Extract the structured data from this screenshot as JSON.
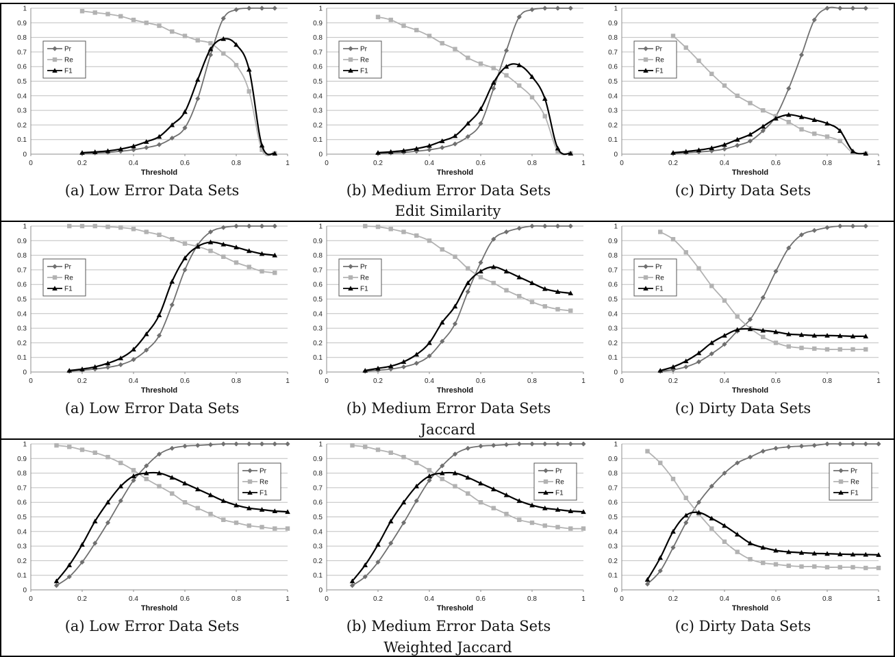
{
  "colors": {
    "pr": "#707070",
    "re": "#b2b2b2",
    "f1": "#000000",
    "grid": "#bfbfbf",
    "axis": "#8c8c8c"
  },
  "row_captions": [
    "Edit Similarity",
    "Jaccard",
    "Weighted Jaccard"
  ],
  "chart_data": [
    {
      "type": "line",
      "caption": "(a) Low Error Data Sets",
      "xlabel": "Threshold",
      "ylabel": "",
      "xlim": [
        0,
        1
      ],
      "ylim": [
        0,
        1
      ],
      "xticks": [
        "0",
        "0.2",
        "0.4",
        "0.6",
        "0.8",
        "1"
      ],
      "yticks": [
        "0",
        "0.1",
        "0.2",
        "0.3",
        "0.4",
        "0.5",
        "0.6",
        "0.7",
        "0.8",
        "0.9",
        "1"
      ],
      "grid": "horizontal",
      "legend": "left",
      "x": [
        0.2,
        0.25,
        0.3,
        0.35,
        0.4,
        0.45,
        0.5,
        0.55,
        0.6,
        0.65,
        0.7,
        0.75,
        0.8,
        0.85,
        0.9,
        0.95
      ],
      "series": [
        {
          "name": "Pr",
          "values": [
            0.005,
            0.008,
            0.012,
            0.02,
            0.03,
            0.045,
            0.065,
            0.11,
            0.18,
            0.38,
            0.68,
            0.93,
            0.99,
            1.0,
            1.0,
            1.0
          ]
        },
        {
          "name": "Re",
          "values": [
            0.98,
            0.97,
            0.96,
            0.945,
            0.92,
            0.9,
            0.88,
            0.84,
            0.81,
            0.78,
            0.76,
            0.69,
            0.61,
            0.43,
            0.03,
            0.005
          ]
        },
        {
          "name": "F1",
          "values": [
            0.01,
            0.015,
            0.022,
            0.035,
            0.055,
            0.085,
            0.12,
            0.2,
            0.29,
            0.51,
            0.72,
            0.79,
            0.75,
            0.58,
            0.06,
            0.005
          ]
        }
      ]
    },
    {
      "type": "line",
      "caption": "(b) Medium Error Data Sets",
      "xlabel": "Threshold",
      "ylabel": "",
      "xlim": [
        0,
        1
      ],
      "ylim": [
        0,
        1
      ],
      "xticks": [
        "0",
        "0.2",
        "0.4",
        "0.6",
        "0.8",
        "1"
      ],
      "yticks": [
        "0",
        "0.1",
        "0.2",
        "0.3",
        "0.4",
        "0.5",
        "0.6",
        "0.7",
        "0.8",
        "0.9",
        "1"
      ],
      "grid": "horizontal",
      "legend": "left",
      "x": [
        0.2,
        0.25,
        0.3,
        0.35,
        0.4,
        0.45,
        0.5,
        0.55,
        0.6,
        0.65,
        0.7,
        0.75,
        0.8,
        0.85,
        0.9,
        0.95
      ],
      "series": [
        {
          "name": "Pr",
          "values": [
            0.005,
            0.008,
            0.012,
            0.02,
            0.03,
            0.045,
            0.07,
            0.12,
            0.21,
            0.45,
            0.71,
            0.94,
            0.99,
            1.0,
            1.0,
            1.0
          ]
        },
        {
          "name": "Re",
          "values": [
            0.94,
            0.92,
            0.88,
            0.85,
            0.81,
            0.76,
            0.72,
            0.66,
            0.62,
            0.59,
            0.54,
            0.47,
            0.39,
            0.26,
            0.02,
            0.005
          ]
        },
        {
          "name": "F1",
          "values": [
            0.01,
            0.016,
            0.024,
            0.038,
            0.058,
            0.09,
            0.125,
            0.21,
            0.31,
            0.49,
            0.6,
            0.61,
            0.53,
            0.38,
            0.04,
            0.005
          ]
        }
      ]
    },
    {
      "type": "line",
      "caption": "(c) Dirty Data Sets",
      "xlabel": "Threshold",
      "ylabel": "",
      "xlim": [
        0,
        1
      ],
      "ylim": [
        0,
        1
      ],
      "xticks": [
        "0",
        "0.2",
        "0.4",
        "0.6",
        "0.8",
        "1"
      ],
      "yticks": [
        "0",
        "0.1",
        "0.2",
        "0.3",
        "0.4",
        "0.5",
        "0.6",
        "0.7",
        "0.8",
        "0.9",
        "1"
      ],
      "grid": "horizontal",
      "legend": "left",
      "x": [
        0.2,
        0.25,
        0.3,
        0.35,
        0.4,
        0.45,
        0.5,
        0.55,
        0.6,
        0.65,
        0.7,
        0.75,
        0.8,
        0.85,
        0.9,
        0.95
      ],
      "series": [
        {
          "name": "Pr",
          "values": [
            0.005,
            0.01,
            0.015,
            0.022,
            0.035,
            0.06,
            0.09,
            0.16,
            0.26,
            0.45,
            0.68,
            0.92,
            1.0,
            1.0,
            1.0,
            1.0
          ]
        },
        {
          "name": "Re",
          "values": [
            0.81,
            0.73,
            0.64,
            0.55,
            0.47,
            0.4,
            0.35,
            0.3,
            0.26,
            0.22,
            0.17,
            0.14,
            0.12,
            0.09,
            0.01,
            0.003
          ]
        },
        {
          "name": "F1",
          "values": [
            0.01,
            0.018,
            0.028,
            0.042,
            0.065,
            0.1,
            0.135,
            0.19,
            0.245,
            0.27,
            0.255,
            0.235,
            0.21,
            0.16,
            0.02,
            0.005
          ]
        }
      ]
    },
    {
      "type": "line",
      "caption": "(a) Low Error Data Sets",
      "xlabel": "Threshold",
      "ylabel": "",
      "xlim": [
        0,
        1
      ],
      "ylim": [
        0,
        1
      ],
      "xticks": [
        "0",
        "0.2",
        "0.4",
        "0.6",
        "0.8",
        "1"
      ],
      "yticks": [
        "0",
        "0.1",
        "0.2",
        "0.3",
        "0.4",
        "0.5",
        "0.6",
        "0.7",
        "0.8",
        "0.9",
        "1"
      ],
      "grid": "horizontal",
      "legend": "left",
      "x": [
        0.15,
        0.2,
        0.25,
        0.3,
        0.35,
        0.4,
        0.45,
        0.5,
        0.55,
        0.6,
        0.65,
        0.7,
        0.75,
        0.8,
        0.85,
        0.9,
        0.95
      ],
      "series": [
        {
          "name": "Pr",
          "values": [
            0.005,
            0.012,
            0.02,
            0.032,
            0.05,
            0.085,
            0.15,
            0.25,
            0.46,
            0.7,
            0.87,
            0.96,
            0.99,
            1.0,
            1.0,
            1.0,
            1.0
          ]
        },
        {
          "name": "Re",
          "values": [
            1.0,
            1.0,
            1.0,
            0.995,
            0.99,
            0.98,
            0.96,
            0.94,
            0.91,
            0.88,
            0.86,
            0.83,
            0.79,
            0.75,
            0.72,
            0.69,
            0.68
          ]
        },
        {
          "name": "F1",
          "values": [
            0.01,
            0.02,
            0.035,
            0.06,
            0.095,
            0.155,
            0.26,
            0.39,
            0.62,
            0.78,
            0.86,
            0.89,
            0.875,
            0.855,
            0.83,
            0.81,
            0.8
          ]
        }
      ]
    },
    {
      "type": "line",
      "caption": "(b) Medium Error Data Sets",
      "xlabel": "Threshold",
      "ylabel": "",
      "xlim": [
        0,
        1
      ],
      "ylim": [
        0,
        1
      ],
      "xticks": [
        "0",
        "0.2",
        "0.4",
        "0.6",
        "0.8",
        "1"
      ],
      "yticks": [
        "0",
        "0.1",
        "0.2",
        "0.3",
        "0.4",
        "0.5",
        "0.6",
        "0.7",
        "0.8",
        "0.9",
        "1"
      ],
      "grid": "horizontal",
      "legend": "left",
      "x": [
        0.15,
        0.2,
        0.25,
        0.3,
        0.35,
        0.4,
        0.45,
        0.5,
        0.55,
        0.6,
        0.65,
        0.7,
        0.75,
        0.8,
        0.85,
        0.9,
        0.95
      ],
      "series": [
        {
          "name": "Pr",
          "values": [
            0.005,
            0.012,
            0.02,
            0.035,
            0.06,
            0.11,
            0.21,
            0.33,
            0.55,
            0.75,
            0.91,
            0.96,
            0.985,
            1.0,
            1.0,
            1.0,
            1.0
          ]
        },
        {
          "name": "Re",
          "values": [
            1.0,
            0.995,
            0.98,
            0.96,
            0.935,
            0.9,
            0.84,
            0.79,
            0.71,
            0.65,
            0.61,
            0.56,
            0.52,
            0.48,
            0.45,
            0.43,
            0.42
          ]
        },
        {
          "name": "F1",
          "values": [
            0.01,
            0.025,
            0.04,
            0.07,
            0.12,
            0.2,
            0.34,
            0.45,
            0.61,
            0.69,
            0.72,
            0.69,
            0.65,
            0.61,
            0.57,
            0.55,
            0.54
          ]
        }
      ]
    },
    {
      "type": "line",
      "caption": "(c) Dirty Data Sets",
      "xlabel": "Threshold",
      "ylabel": "",
      "xlim": [
        0,
        1
      ],
      "ylim": [
        0,
        1
      ],
      "xticks": [
        "0",
        "0.2",
        "0.4",
        "0.6",
        "0.8",
        "1"
      ],
      "yticks": [
        "0",
        "0.1",
        "0.2",
        "0.3",
        "0.4",
        "0.5",
        "0.6",
        "0.7",
        "0.8",
        "0.9",
        "1"
      ],
      "grid": "horizontal",
      "legend": "left",
      "x": [
        0.15,
        0.2,
        0.25,
        0.3,
        0.35,
        0.4,
        0.45,
        0.5,
        0.55,
        0.6,
        0.65,
        0.7,
        0.75,
        0.8,
        0.85,
        0.9,
        0.95
      ],
      "series": [
        {
          "name": "Pr",
          "values": [
            0.005,
            0.015,
            0.035,
            0.07,
            0.125,
            0.19,
            0.28,
            0.36,
            0.51,
            0.69,
            0.85,
            0.94,
            0.97,
            0.99,
            1.0,
            1.0,
            1.0
          ]
        },
        {
          "name": "Re",
          "values": [
            0.96,
            0.91,
            0.82,
            0.71,
            0.59,
            0.49,
            0.38,
            0.3,
            0.24,
            0.2,
            0.175,
            0.165,
            0.16,
            0.155,
            0.155,
            0.155,
            0.155
          ]
        },
        {
          "name": "F1",
          "values": [
            0.01,
            0.035,
            0.075,
            0.13,
            0.2,
            0.25,
            0.29,
            0.295,
            0.285,
            0.275,
            0.26,
            0.255,
            0.25,
            0.25,
            0.248,
            0.245,
            0.245
          ]
        }
      ]
    },
    {
      "type": "line",
      "caption": "(a) Low Error Data Sets",
      "xlabel": "Threshold",
      "ylabel": "",
      "xlim": [
        0,
        1
      ],
      "ylim": [
        0,
        1
      ],
      "xticks": [
        "0",
        "0.2",
        "0.4",
        "0.6",
        "0.8",
        "1"
      ],
      "yticks": [
        "0",
        "0.1",
        "0.2",
        "0.3",
        "0.4",
        "0.5",
        "0.6",
        "0.7",
        "0.8",
        "0.9",
        "1"
      ],
      "grid": "horizontal",
      "legend": "right",
      "x": [
        0.1,
        0.15,
        0.2,
        0.25,
        0.3,
        0.35,
        0.4,
        0.45,
        0.5,
        0.55,
        0.6,
        0.65,
        0.7,
        0.75,
        0.8,
        0.85,
        0.9,
        0.95,
        1.0
      ],
      "series": [
        {
          "name": "Pr",
          "values": [
            0.03,
            0.09,
            0.19,
            0.32,
            0.46,
            0.61,
            0.75,
            0.85,
            0.93,
            0.97,
            0.985,
            0.99,
            0.995,
            1.0,
            1.0,
            1.0,
            1.0,
            1.0,
            1.0
          ]
        },
        {
          "name": "Re",
          "values": [
            0.99,
            0.98,
            0.96,
            0.94,
            0.91,
            0.87,
            0.82,
            0.76,
            0.71,
            0.66,
            0.6,
            0.56,
            0.52,
            0.48,
            0.46,
            0.44,
            0.43,
            0.42,
            0.42
          ]
        },
        {
          "name": "F1",
          "values": [
            0.06,
            0.17,
            0.31,
            0.47,
            0.6,
            0.71,
            0.78,
            0.8,
            0.8,
            0.77,
            0.73,
            0.69,
            0.65,
            0.61,
            0.58,
            0.56,
            0.55,
            0.54,
            0.535
          ]
        }
      ]
    },
    {
      "type": "line",
      "caption": "(b) Medium Error Data Sets",
      "xlabel": "Threshold",
      "ylabel": "",
      "xlim": [
        0,
        1
      ],
      "ylim": [
        0,
        1
      ],
      "xticks": [
        "0",
        "0.2",
        "0.4",
        "0.6",
        "0.8",
        "1"
      ],
      "yticks": [
        "0",
        "0.1",
        "0.2",
        "0.3",
        "0.4",
        "0.5",
        "0.6",
        "0.7",
        "0.8",
        "0.9",
        "1"
      ],
      "grid": "horizontal",
      "legend": "right",
      "x": [
        0.1,
        0.15,
        0.2,
        0.25,
        0.3,
        0.35,
        0.4,
        0.45,
        0.5,
        0.55,
        0.6,
        0.65,
        0.7,
        0.75,
        0.8,
        0.85,
        0.9,
        0.95,
        1.0
      ],
      "series": [
        {
          "name": "Pr",
          "values": [
            0.03,
            0.09,
            0.19,
            0.32,
            0.46,
            0.61,
            0.75,
            0.85,
            0.93,
            0.97,
            0.985,
            0.99,
            0.995,
            1.0,
            1.0,
            1.0,
            1.0,
            1.0,
            1.0
          ]
        },
        {
          "name": "Re",
          "values": [
            0.99,
            0.98,
            0.96,
            0.94,
            0.91,
            0.87,
            0.82,
            0.76,
            0.71,
            0.66,
            0.6,
            0.56,
            0.52,
            0.48,
            0.46,
            0.44,
            0.43,
            0.42,
            0.42
          ]
        },
        {
          "name": "F1",
          "values": [
            0.06,
            0.17,
            0.31,
            0.47,
            0.6,
            0.71,
            0.78,
            0.8,
            0.8,
            0.77,
            0.73,
            0.69,
            0.65,
            0.61,
            0.58,
            0.56,
            0.55,
            0.54,
            0.535
          ]
        }
      ]
    },
    {
      "type": "line",
      "caption": "(c) Dirty Data Sets",
      "xlabel": "Threshold",
      "ylabel": "",
      "xlim": [
        0,
        1
      ],
      "ylim": [
        0,
        1
      ],
      "xticks": [
        "0",
        "0.2",
        "0.4",
        "0.6",
        "0.8",
        "1"
      ],
      "yticks": [
        "0",
        "0.1",
        "0.2",
        "0.3",
        "0.4",
        "0.5",
        "0.6",
        "0.7",
        "0.8",
        "0.9",
        "1"
      ],
      "grid": "horizontal",
      "legend": "right",
      "x": [
        0.1,
        0.15,
        0.2,
        0.25,
        0.3,
        0.35,
        0.4,
        0.45,
        0.5,
        0.55,
        0.6,
        0.65,
        0.7,
        0.75,
        0.8,
        0.85,
        0.9,
        0.95,
        1.0
      ],
      "series": [
        {
          "name": "Pr",
          "values": [
            0.04,
            0.13,
            0.29,
            0.46,
            0.6,
            0.71,
            0.8,
            0.87,
            0.91,
            0.95,
            0.97,
            0.98,
            0.985,
            0.99,
            1.0,
            1.0,
            1.0,
            1.0,
            1.0
          ]
        },
        {
          "name": "Re",
          "values": [
            0.95,
            0.87,
            0.76,
            0.63,
            0.52,
            0.42,
            0.33,
            0.26,
            0.21,
            0.185,
            0.175,
            0.165,
            0.16,
            0.16,
            0.155,
            0.155,
            0.155,
            0.15,
            0.15
          ]
        },
        {
          "name": "F1",
          "values": [
            0.07,
            0.22,
            0.4,
            0.51,
            0.53,
            0.49,
            0.44,
            0.38,
            0.32,
            0.29,
            0.27,
            0.26,
            0.255,
            0.25,
            0.248,
            0.245,
            0.243,
            0.242,
            0.24
          ]
        }
      ]
    }
  ]
}
